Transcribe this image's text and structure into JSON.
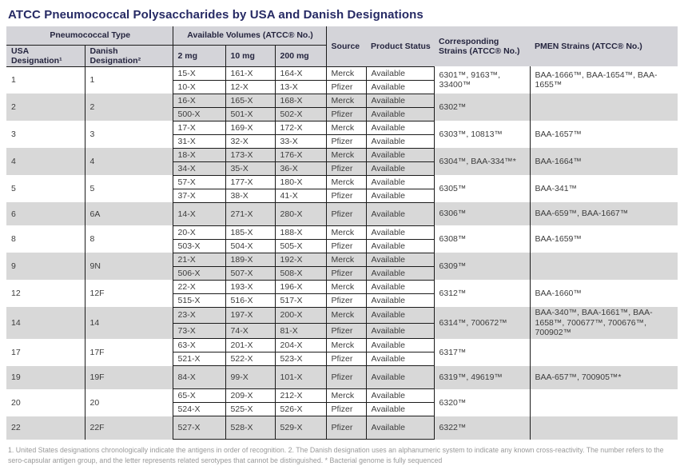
{
  "title": "ATCC Pneumococcal Polysaccharides by USA and Danish Designations",
  "colors": {
    "title_color": "#262a64",
    "header_bg": "#d4d4d9",
    "row_shade": "#d8d8d8",
    "border_color": "#1b1b1b",
    "body_text": "#3c3c3c",
    "header_text": "#25253f",
    "footnote_text": "#999999"
  },
  "table": {
    "headers": {
      "pneumococcal_type": "Pneumococcal Type",
      "usa_designation": "USA Designation¹",
      "danish_designation": "Danish Designation²",
      "available_volumes": "Available Volumes (ATCC® No.)",
      "vol_2mg": "2 mg",
      "vol_10mg": "10 mg",
      "vol_200mg": "200 mg",
      "source": "Source",
      "product_status": "Product Status",
      "corresponding_strains": "Corresponding Strains (ATCC® No.)",
      "pmen_strains": "PMEN Strains (ATCC® No.)"
    },
    "groups": [
      {
        "usa": "1",
        "danish": "1",
        "rows": [
          {
            "v2": "15-X",
            "v10": "161-X",
            "v200": "164-X",
            "source": "Merck",
            "status": "Available"
          },
          {
            "v2": "10-X",
            "v10": "12-X",
            "v200": "13-X",
            "source": "Pfizer",
            "status": "Available"
          }
        ],
        "corresponding": "6301™, 9163™, 33400™",
        "pmen": "BAA-1666™, BAA-1654™, BAA-1655™"
      },
      {
        "usa": "2",
        "danish": "2",
        "rows": [
          {
            "v2": "16-X",
            "v10": "165-X",
            "v200": "168-X",
            "source": "Merck",
            "status": "Available"
          },
          {
            "v2": "500-X",
            "v10": "501-X",
            "v200": "502-X",
            "source": "Pfizer",
            "status": "Available"
          }
        ],
        "corresponding": "6302™",
        "pmen": ""
      },
      {
        "usa": "3",
        "danish": "3",
        "rows": [
          {
            "v2": "17-X",
            "v10": "169-X",
            "v200": "172-X",
            "source": "Merck",
            "status": "Available"
          },
          {
            "v2": "31-X",
            "v10": "32-X",
            "v200": "33-X",
            "source": "Pfizer",
            "status": "Available"
          }
        ],
        "corresponding": "6303™, 10813™",
        "pmen": "BAA-1657™"
      },
      {
        "usa": "4",
        "danish": "4",
        "rows": [
          {
            "v2": "18-X",
            "v10": "173-X",
            "v200": "176-X",
            "source": "Merck",
            "status": "Available"
          },
          {
            "v2": "34-X",
            "v10": "35-X",
            "v200": "36-X",
            "source": "Pfizer",
            "status": "Available"
          }
        ],
        "corresponding": "6304™, BAA-334™*",
        "pmen": "BAA-1664™"
      },
      {
        "usa": "5",
        "danish": "5",
        "rows": [
          {
            "v2": "57-X",
            "v10": "177-X",
            "v200": "180-X",
            "source": "Merck",
            "status": "Available"
          },
          {
            "v2": "37-X",
            "v10": "38-X",
            "v200": "41-X",
            "source": "Pfizer",
            "status": "Available"
          }
        ],
        "corresponding": "6305™",
        "pmen": "BAA-341™"
      },
      {
        "usa": "6",
        "danish": "6A",
        "rows": [
          {
            "v2": "14-X",
            "v10": "271-X",
            "v200": "280-X",
            "source": "Pfizer",
            "status": "Available"
          }
        ],
        "corresponding": "6306™",
        "pmen": "BAA-659™, BAA-1667™"
      },
      {
        "usa": "8",
        "danish": "8",
        "rows": [
          {
            "v2": "20-X",
            "v10": "185-X",
            "v200": "188-X",
            "source": "Merck",
            "status": "Available"
          },
          {
            "v2": "503-X",
            "v10": "504-X",
            "v200": "505-X",
            "source": "Pfizer",
            "status": "Available"
          }
        ],
        "corresponding": "6308™",
        "pmen": "BAA-1659™"
      },
      {
        "usa": "9",
        "danish": "9N",
        "rows": [
          {
            "v2": "21-X",
            "v10": "189-X",
            "v200": "192-X",
            "source": "Merck",
            "status": "Available"
          },
          {
            "v2": "506-X",
            "v10": "507-X",
            "v200": "508-X",
            "source": "Pfizer",
            "status": "Available"
          }
        ],
        "corresponding": "6309™",
        "pmen": ""
      },
      {
        "usa": "12",
        "danish": "12F",
        "rows": [
          {
            "v2": "22-X",
            "v10": "193-X",
            "v200": "196-X",
            "source": "Merck",
            "status": "Available"
          },
          {
            "v2": "515-X",
            "v10": "516-X",
            "v200": "517-X",
            "source": "Pfizer",
            "status": "Available"
          }
        ],
        "corresponding": "6312™",
        "pmen": "BAA-1660™"
      },
      {
        "usa": "14",
        "danish": "14",
        "rows": [
          {
            "v2": "23-X",
            "v10": "197-X",
            "v200": "200-X",
            "source": "Merck",
            "status": "Available"
          },
          {
            "v2": "73-X",
            "v10": "74-X",
            "v200": "81-X",
            "source": "Pfizer",
            "status": "Available"
          }
        ],
        "corresponding": "6314™, 700672™",
        "pmen": "BAA-340™, BAA-1661™, BAA-1658™, 700677™, 700676™, 700902™"
      },
      {
        "usa": "17",
        "danish": "17F",
        "rows": [
          {
            "v2": "63-X",
            "v10": "201-X",
            "v200": "204-X",
            "source": "Merck",
            "status": "Available"
          },
          {
            "v2": "521-X",
            "v10": "522-X",
            "v200": "523-X",
            "source": "Pfizer",
            "status": "Available"
          }
        ],
        "corresponding": "6317™",
        "pmen": ""
      },
      {
        "usa": "19",
        "danish": "19F",
        "rows": [
          {
            "v2": "84-X",
            "v10": "99-X",
            "v200": "101-X",
            "source": "Pfizer",
            "status": "Available"
          }
        ],
        "corresponding": "6319™, 49619™",
        "pmen": "BAA-657™, 700905™*"
      },
      {
        "usa": "20",
        "danish": "20",
        "rows": [
          {
            "v2": "65-X",
            "v10": "209-X",
            "v200": "212-X",
            "source": "Merck",
            "status": "Available"
          },
          {
            "v2": "524-X",
            "v10": "525-X",
            "v200": "526-X",
            "source": "Pfizer",
            "status": "Available"
          }
        ],
        "corresponding": "6320™",
        "pmen": ""
      },
      {
        "usa": "22",
        "danish": "22F",
        "rows": [
          {
            "v2": "527-X",
            "v10": "528-X",
            "v200": "529-X",
            "source": "Pfizer",
            "status": "Available"
          }
        ],
        "corresponding": "6322™",
        "pmen": ""
      }
    ]
  },
  "footnote": "1. United States designations chronologically indicate the antigens in order of recognition. 2. The Danish designation uses an alphanumeric system to indicate any known cross-reactivity. The number refers to the sero-capsular antigen group, and the letter represents related serotypes that cannot be distinguished. * Bacterial genome is fully sequenced"
}
